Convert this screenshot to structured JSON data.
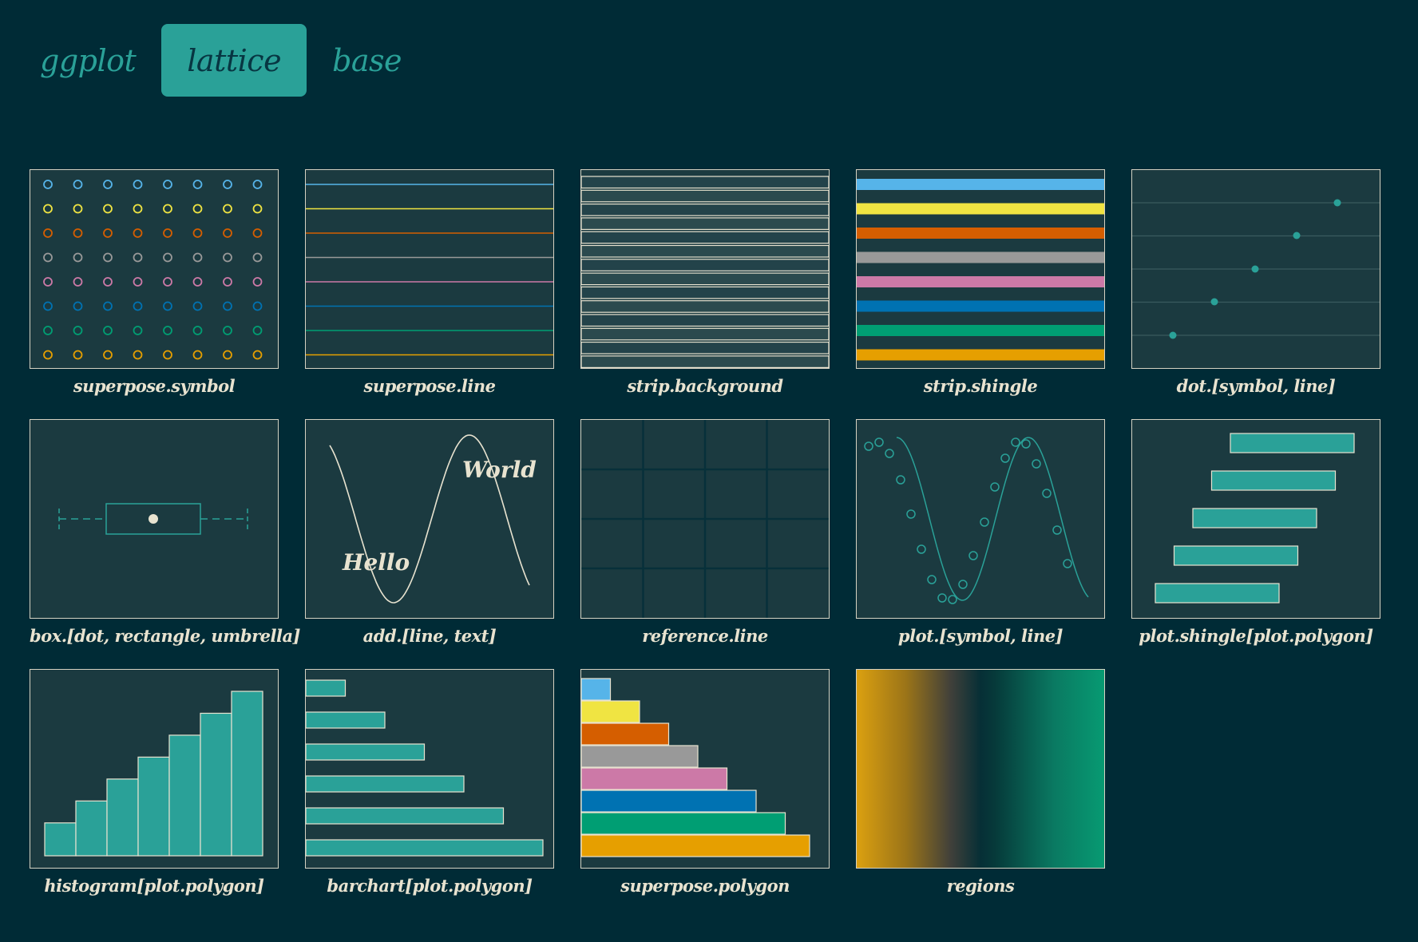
{
  "tabs": [
    {
      "label": "ggplot",
      "active": false
    },
    {
      "label": "lattice",
      "active": true
    },
    {
      "label": "base",
      "active": false
    }
  ],
  "colors": {
    "background": "#002b36",
    "accent": "#2aa198",
    "panel": "#1b3a40",
    "palette": [
      "#56b4e9",
      "#f0e442",
      "#d55e00",
      "#999999",
      "#cc79a7",
      "#0072b2",
      "#009e73",
      "#e69f00"
    ]
  },
  "panels": [
    {
      "caption": "superpose.symbol"
    },
    {
      "caption": "superpose.line"
    },
    {
      "caption": "strip.background"
    },
    {
      "caption": "strip.shingle"
    },
    {
      "caption": "dot.[symbol, line]"
    },
    {
      "caption": "box.[dot, rectangle, umbrella]"
    },
    {
      "caption": "add.[line, text]",
      "texts": [
        "World",
        "Hello"
      ]
    },
    {
      "caption": "reference.line"
    },
    {
      "caption": "plot.[symbol, line]"
    },
    {
      "caption": "plot.shingle[plot.polygon]"
    },
    {
      "caption": "histogram[plot.polygon]",
      "values": [
        1.5,
        2.5,
        3.5,
        4.5,
        5.5,
        6.5,
        7.5
      ]
    },
    {
      "caption": "barchart[plot.polygon]",
      "values": [
        1,
        2,
        3,
        4,
        5,
        6
      ]
    },
    {
      "caption": "superpose.polygon",
      "values": [
        1,
        2,
        3,
        4,
        5,
        6,
        7,
        8
      ]
    },
    {
      "caption": "regions"
    }
  ]
}
